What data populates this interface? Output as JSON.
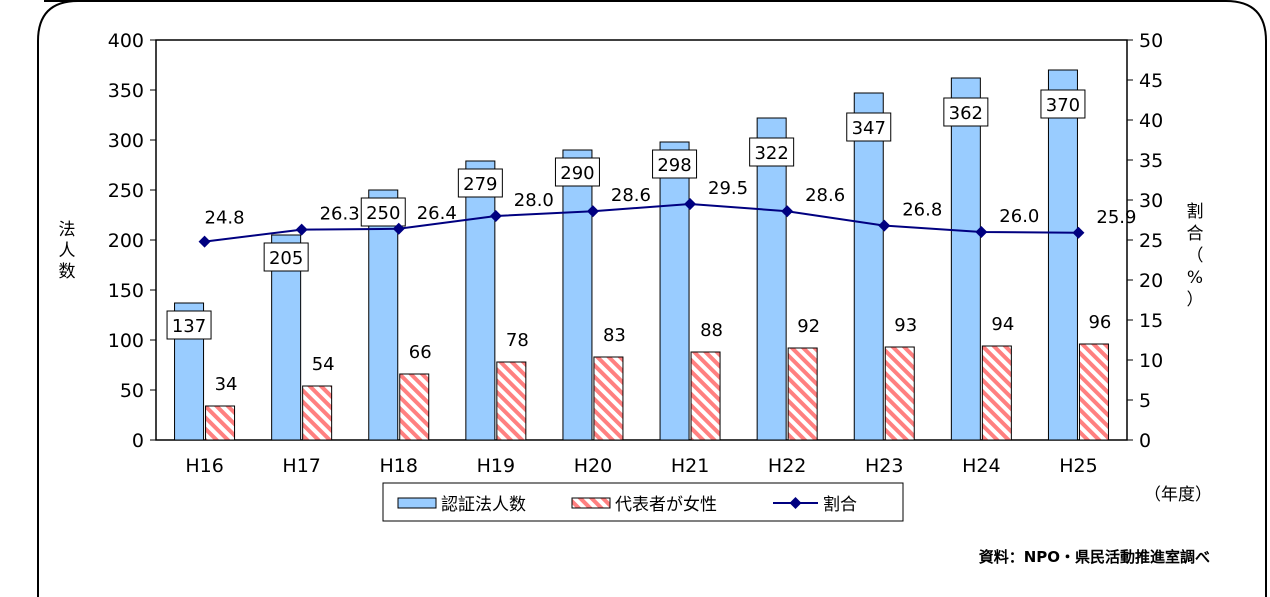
{
  "chart_data": {
    "type": "bar",
    "categories": [
      "H16",
      "H17",
      "H18",
      "H19",
      "H20",
      "H21",
      "H22",
      "H23",
      "H24",
      "H25"
    ],
    "series": [
      {
        "name": "認証法人数",
        "type": "bar",
        "axis": "left",
        "values": [
          137,
          205,
          250,
          279,
          290,
          298,
          322,
          347,
          362,
          370
        ],
        "color": "#99ccff"
      },
      {
        "name": "代表者が女性",
        "type": "bar",
        "axis": "left",
        "pattern": "diagonal-stripes",
        "values": [
          34,
          54,
          66,
          78,
          83,
          88,
          92,
          93,
          94,
          96
        ],
        "color": "#ff8080"
      },
      {
        "name": "割合",
        "type": "line",
        "axis": "right",
        "values": [
          24.8,
          26.3,
          26.4,
          28.0,
          28.6,
          29.5,
          28.6,
          26.8,
          26.0,
          25.9
        ],
        "labels": [
          "24.8",
          "26.3",
          "26.4",
          "28.0",
          "28.6",
          "29.5",
          "28.6",
          "26.8",
          "26.0",
          "25.9"
        ],
        "color": "#000080"
      }
    ],
    "ylabel": "法人数",
    "y2label": "割合（%）",
    "xunit": "（年度）",
    "ylim": [
      0,
      400
    ],
    "yticks": [
      "0",
      "50",
      "100",
      "150",
      "200",
      "250",
      "300",
      "350",
      "400"
    ],
    "y2lim": [
      0,
      50
    ],
    "y2ticks": [
      "0",
      "5",
      "10",
      "15",
      "20",
      "25",
      "30",
      "35",
      "40",
      "45",
      "50"
    ],
    "legend_position": "bottom-center",
    "grid": false
  },
  "source_note": "資料：NPO・県民活動推進室調べ"
}
